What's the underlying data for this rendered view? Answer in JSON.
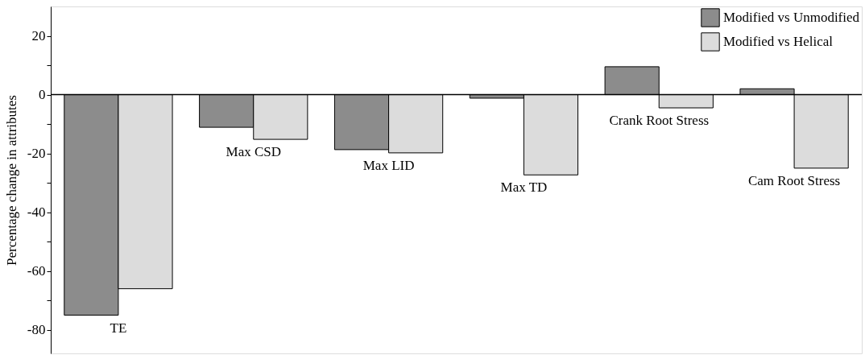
{
  "chart_data": {
    "type": "bar",
    "ylabel": "Percentage change in attributes",
    "categories": [
      "TE",
      "Max CSD",
      "Max LID",
      "Max TD",
      "Crank Root Stress",
      "Cam Root Stress"
    ],
    "series": [
      {
        "name": "Modified vs Unmodified",
        "color": "#8c8c8c",
        "values": [
          -75,
          -11.1,
          -18.7,
          -1.2,
          9.5,
          2.0
        ]
      },
      {
        "name": "Modified vs Helical",
        "color": "#dcdcdc",
        "values": [
          -66,
          -15.2,
          -19.8,
          -27.3,
          -4.5,
          -25.0
        ]
      }
    ],
    "ylim": [
      -88,
      30
    ],
    "yticks": [
      -80,
      {
        "value": -70,
        "label": null
      },
      -60,
      {
        "value": -50,
        "label": null
      },
      -40,
      {
        "value": -30,
        "label": null
      },
      -20,
      {
        "value": -10,
        "label": null
      },
      0,
      {
        "value": 10,
        "label": null
      },
      20
    ],
    "legend": "top right"
  }
}
